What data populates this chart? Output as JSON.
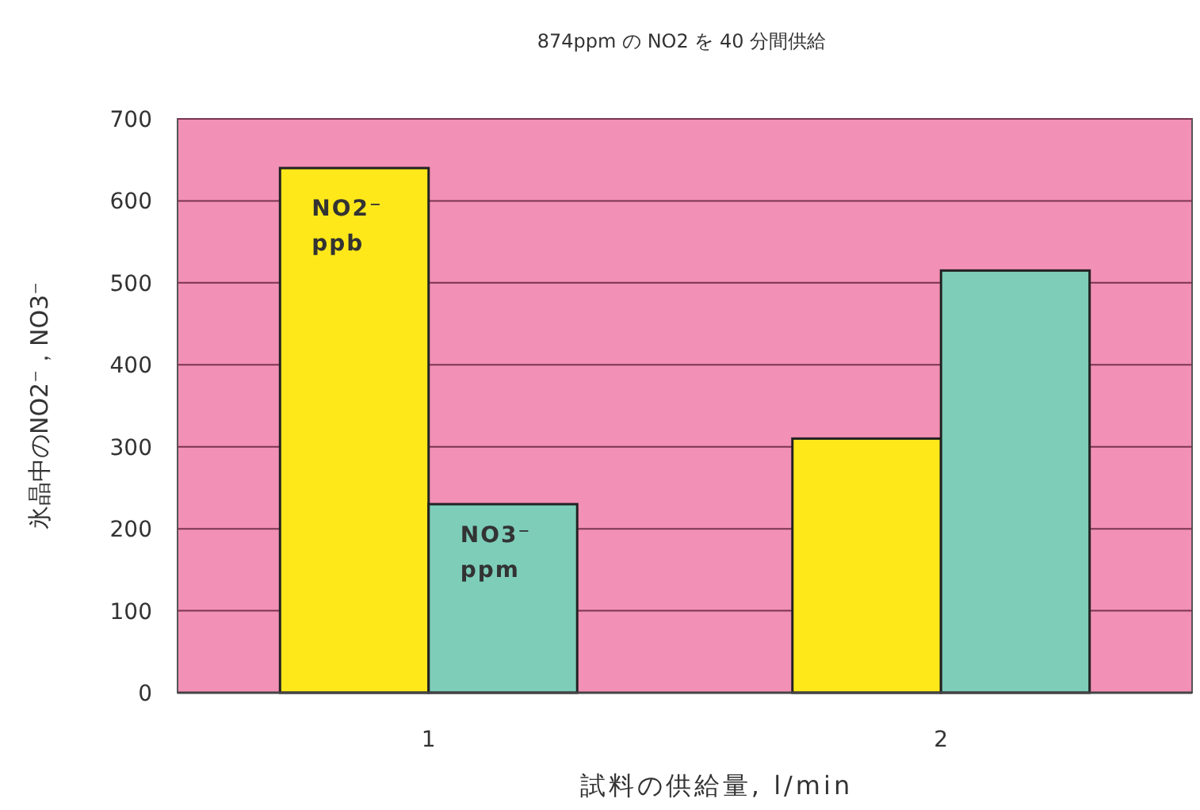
{
  "chart_data": {
    "type": "bar",
    "title": "874ppm の NO2 を 40 分間供給",
    "xlabel": "試料の供給量, l/min",
    "ylabel": "氷晶中のNO2⁻，NO3⁻",
    "categories": [
      "1",
      "2"
    ],
    "series": [
      {
        "name": "NO2⁻ ppb",
        "color": "#ffe81a",
        "values": [
          640,
          310
        ]
      },
      {
        "name": "NO3⁻ ppm",
        "color": "#7dcdb9",
        "values": [
          230,
          515
        ]
      }
    ],
    "ylim": [
      0,
      700
    ],
    "yticks": [
      0,
      100,
      200,
      300,
      400,
      500,
      600,
      700
    ],
    "grid": "y"
  }
}
